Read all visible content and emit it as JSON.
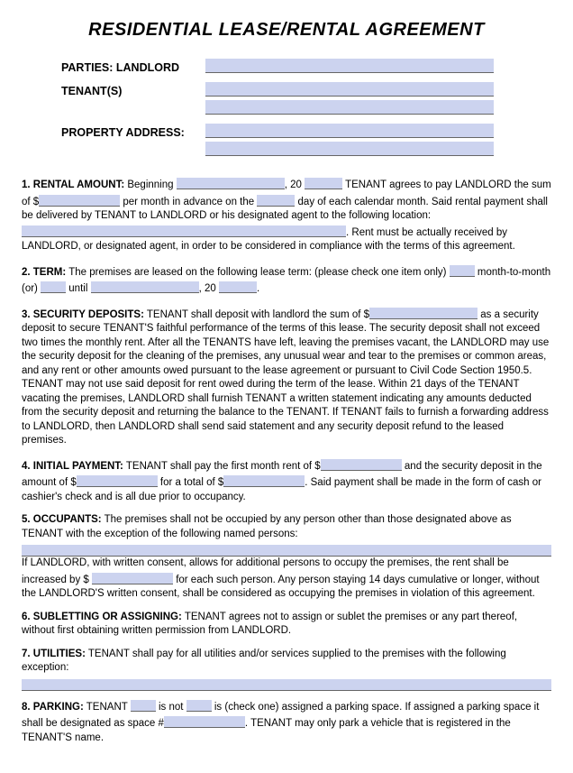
{
  "colors": {
    "blank_fill": "#ccd3ef",
    "blank_underline": "#666666",
    "text": "#000000",
    "background": "#ffffff"
  },
  "title": "RESIDENTIAL LEASE/RENTAL AGREEMENT",
  "header": {
    "landlord_label": "PARTIES: LANDLORD",
    "tenant_label": "TENANT(S)",
    "address_label": "PROPERTY ADDRESS:"
  },
  "sections": {
    "s1": {
      "label": "1. RENTAL AMOUNT:",
      "t1": " Beginning ",
      "t2": ", 20 ",
      "t3": " TENANT agrees to pay LANDLORD the sum of $",
      "t4": " per month in advance on the ",
      "t5": " day of each calendar month. Said rental payment shall be delivered by TENANT to LANDLORD or his designated agent to the following location: ",
      "t6": ". Rent must be actually received by LANDLORD, or designated agent, in order to be considered in compliance with the terms of this agreement."
    },
    "s2": {
      "label": "2. TERM:",
      "t1": " The premises are leased on the following lease term: (please check one item only) ",
      "t2": " month-to-month (or) ",
      "t3": " until ",
      "t4": ", 20 ",
      "t5": "."
    },
    "s3": {
      "label": "3. SECURITY DEPOSITS:",
      "t1": " TENANT shall deposit with landlord the sum of  $",
      "t2": " as a security deposit to secure TENANT'S faithful performance of the terms of this lease. The security deposit shall not exceed two times the monthly rent. After all the TENANTS have left, leaving the premises vacant, the LANDLORD may use the security deposit for the cleaning of the premises, any unusual wear and tear to the premises or common areas, and any rent or other amounts owed pursuant to the lease agreement or pursuant to Civil Code Section 1950.5. TENANT may not use said deposit for rent owed during the term of the lease. Within 21 days of the TENANT vacating the premises, LANDLORD shall furnish TENANT a written statement indicating any amounts deducted from the security deposit and returning the balance to the TENANT. If TENANT fails to furnish a forwarding address to LANDLORD, then LANDLORD shall send said statement and any security deposit refund to the leased premises."
    },
    "s4": {
      "label": "4. INITIAL PAYMENT:",
      "t1": " TENANT shall pay the first month rent of $",
      "t2": " and the security deposit in the amount of $",
      "t3": " for a total of $",
      "t4": ". Said payment shall be made in the form of cash or cashier's check and is all due prior to occupancy."
    },
    "s5": {
      "label": "5. OCCUPANTS:",
      "t1": " The premises shall not be occupied by any person other than those designated above as TENANT with the exception of the following named persons: ",
      "t2": "If LANDLORD, with written consent, allows for additional persons to occupy the premises, the rent shall be increased by $ ",
      "t3": " for each such person. Any person staying 14 days cumulative or longer, without the LANDLORD'S written consent, shall be considered as occupying the premises in violation of this agreement."
    },
    "s6": {
      "label": "6. SUBLETTING OR ASSIGNING:",
      "t1": " TENANT agrees not to assign or sublet the premises or any part thereof, without first obtaining written permission from LANDLORD."
    },
    "s7": {
      "label": "7. UTILITIES:",
      "t1": " TENANT shall pay for all utilities and/or services supplied to the premises with the following exception: "
    },
    "s8": {
      "label": "8. PARKING:",
      "t1": " TENANT ",
      "t2": " is not ",
      "t3": " is (check one) assigned a parking space. If assigned a parking space it shall be designated as space  #",
      "t4": ". TENANT may only park a vehicle that is registered in the TENANT'S name."
    }
  }
}
